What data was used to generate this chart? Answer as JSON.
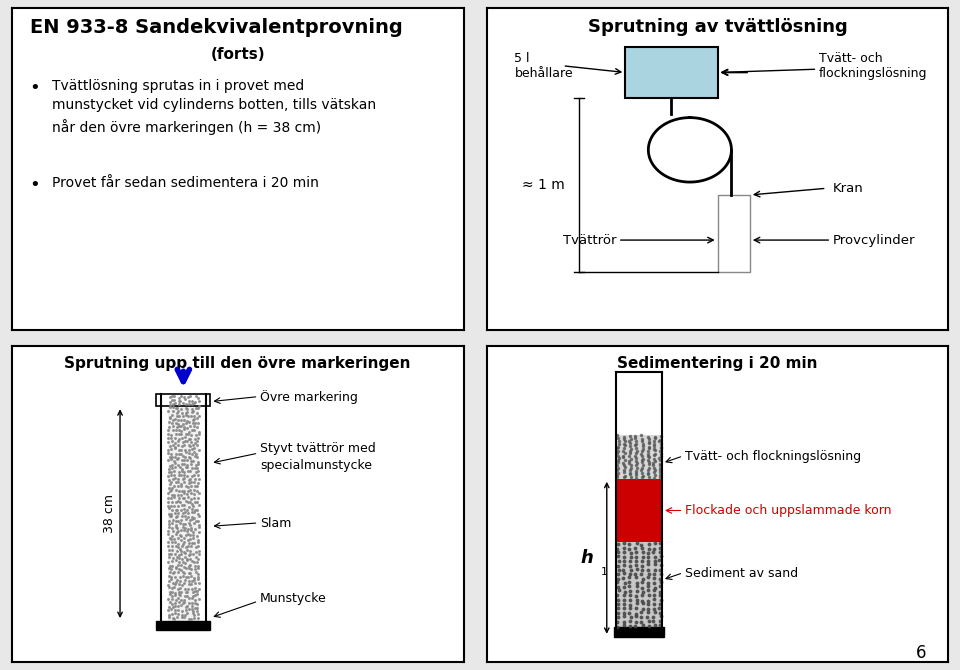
{
  "bg_color": "#e8e8e8",
  "box_bg": "#ffffff",
  "title_top_left": "EN 933-8 Sandekvivalentprovning",
  "subtitle_top_left": "(forts)",
  "bullet1": "Tvättlösning sprutas in i provet med\nmunstycket vid cylinderns botten, tills vätskan\nnår den övre markeringen (h = 38 cm)",
  "bullet2": "Provet får sedan sedimentera i 20 min",
  "title_top_right": "Sprutning av tvättlösning",
  "label_5l": "5 l\nbehållare",
  "label_tvattoch": "Tvätt- och\nflockningslösning",
  "label_1m": "≈ 1 m",
  "label_kran": "Kran",
  "label_tvattrr": "Tvättrör",
  "label_provcylinder": "Provcylinder",
  "title_bot_left": "Sprutning upp till den övre markeringen",
  "label_ovre": "Övre markering",
  "label_styvt": "Styvt tvättrör med\nspecialmunstycke",
  "label_slam": "Slam",
  "label_munstycke": "Munstycke",
  "label_38cm": "38 cm",
  "title_bot_right": "Sedimentering i 20 min",
  "label_tvattoflockningsbr": "Tvätt- och flockningslösning",
  "label_flockade": "Flockade och uppslammade korn",
  "label_sediment": "Sediment av sand",
  "label_h1": "h",
  "container_color": "#aad4e0",
  "flockade_color": "#cc0000",
  "page_num": "6"
}
